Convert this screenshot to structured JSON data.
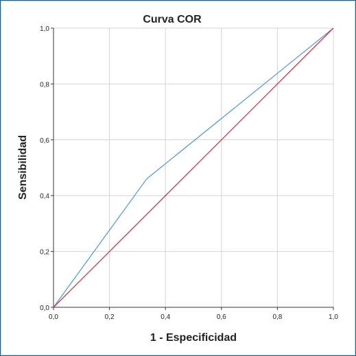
{
  "chart_data": {
    "type": "line",
    "title": "Curva COR",
    "xlabel": "1 - Especificidad",
    "ylabel": "Sensibilidad",
    "xlim": [
      0,
      1
    ],
    "ylim": [
      0,
      1
    ],
    "xticks": [
      "0,0",
      "0,2",
      "0,4",
      "0,6",
      "0,8",
      "1,0"
    ],
    "yticks": [
      "0,0",
      "0,2",
      "0,4",
      "0,6",
      "0,8",
      "1,0"
    ],
    "grid": true,
    "series": [
      {
        "color": "#5b9bd5",
        "x": [
          0.0,
          0.333,
          1.0
        ],
        "y": [
          0.0,
          0.46,
          1.0
        ]
      },
      {
        "color": "#d0384a",
        "x": [
          0.0,
          1.0
        ],
        "y": [
          0.0,
          1.0
        ]
      }
    ]
  }
}
